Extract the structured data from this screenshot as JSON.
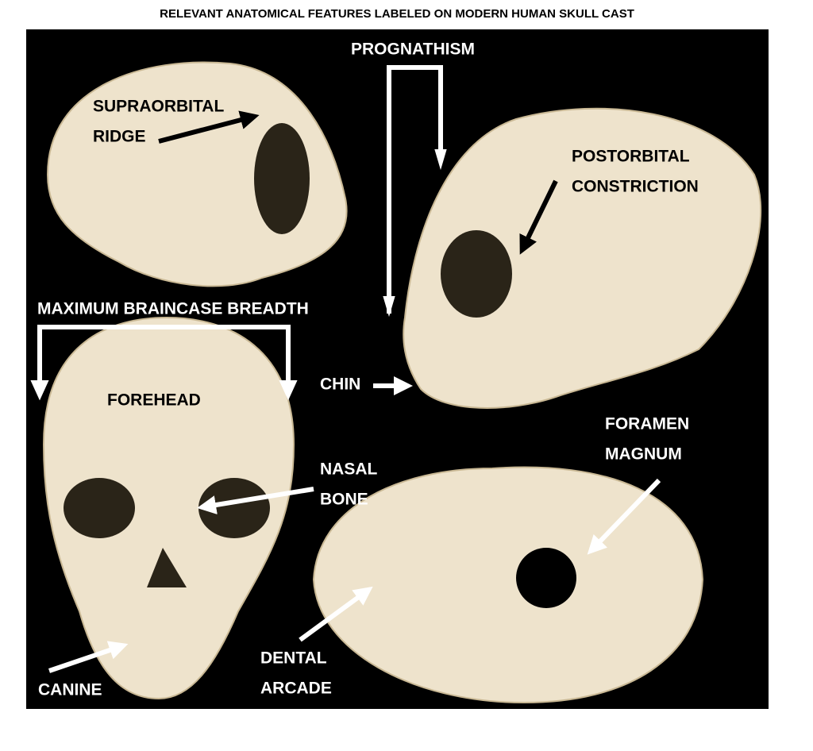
{
  "title": "RELEVANT ANATOMICAL FEATURES LABELED ON MODERN HUMAN SKULL CAST",
  "labels": [
    {
      "lines": [
        "PROGNATHISM"
      ]
    },
    {
      "lines": [
        "SUPRAORBITAL",
        "RIDGE"
      ]
    },
    {
      "lines": [
        "POSTORBITAL",
        "CONSTRICTION"
      ]
    },
    {
      "lines": [
        "MAXIMUM BRAINCASE BREADTH"
      ]
    },
    {
      "lines": [
        "FOREHEAD"
      ]
    },
    {
      "lines": [
        "CHIN"
      ]
    },
    {
      "lines": [
        "FORAMEN",
        "MAGNUM"
      ]
    },
    {
      "lines": [
        "NASAL",
        "BONE"
      ]
    },
    {
      "lines": [
        "DENTAL",
        "ARCADE"
      ]
    },
    {
      "lines": [
        "CANINE"
      ]
    }
  ]
}
